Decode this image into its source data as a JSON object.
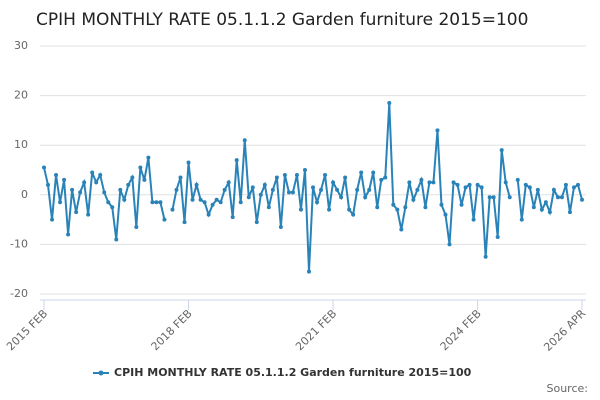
{
  "chart_data": {
    "type": "line",
    "title": "CPIH MONTHLY RATE 05.1.1.2 Garden furniture 2015=100",
    "source": "Source:",
    "categories": [
      "2015 FEB",
      null,
      null,
      null,
      null,
      null,
      null,
      null,
      null,
      null,
      null,
      null,
      null,
      null,
      null,
      null,
      null,
      null,
      null,
      null,
      null,
      null,
      null,
      null,
      null,
      null,
      null,
      null,
      null,
      null,
      null,
      null,
      null,
      null,
      null,
      null,
      "2018 FEB",
      null,
      null,
      null,
      null,
      null,
      null,
      null,
      null,
      null,
      null,
      null,
      null,
      null,
      null,
      null,
      null,
      null,
      null,
      null,
      null,
      null,
      null,
      null,
      null,
      null,
      null,
      null,
      null,
      null,
      null,
      null,
      null,
      null,
      null,
      null,
      "2021 FEB",
      null,
      null,
      null,
      null,
      null,
      null,
      null,
      null,
      null,
      null,
      null,
      null,
      null,
      null,
      null,
      null,
      null,
      null,
      null,
      null,
      null,
      null,
      null,
      null,
      null,
      null,
      null,
      null,
      null,
      null,
      null,
      null,
      null,
      null,
      null,
      "2024 FEB",
      null,
      null,
      null,
      null,
      null,
      null,
      null,
      null,
      null,
      null,
      null,
      null,
      null,
      null,
      null,
      null,
      null,
      null,
      null,
      null,
      null,
      null,
      null,
      null,
      null,
      "2026 APR"
    ],
    "series": [
      {
        "name": "CPIH MONTHLY RATE 05.1.1.2 Garden furniture 2015=100",
        "color": "#2a83b8",
        "values": [
          5.5,
          2,
          -5,
          4,
          -1.5,
          3,
          -8,
          1,
          -3.5,
          0.5,
          2.5,
          -4,
          4.5,
          2.5,
          4,
          0.5,
          -1.5,
          -2.5,
          -9,
          1,
          -1,
          2,
          3.5,
          -6.5,
          5.5,
          3,
          7.5,
          -1.5,
          -1.5,
          -1.5,
          -5,
          null,
          -3,
          1,
          3.5,
          -5.5,
          6.5,
          -1,
          2,
          -1,
          -1.5,
          -4,
          -2,
          -1,
          -1.5,
          1,
          2.5,
          -4.5,
          7,
          -1.5,
          11,
          -0.5,
          1.5,
          -5.5,
          0,
          2,
          -2.5,
          1,
          3.5,
          -6.5,
          4,
          0.5,
          0.5,
          4,
          -3,
          5,
          -15.5,
          1.5,
          -1.5,
          1,
          4,
          -3,
          2.5,
          1,
          -0.5,
          3.5,
          -3,
          -4,
          1,
          4.5,
          -0.5,
          1,
          4.5,
          -2.5,
          3,
          3.5,
          18.5,
          -2,
          -3,
          -7,
          -2.5,
          2.5,
          -1,
          1,
          3,
          -2.5,
          2.5,
          2.5,
          13,
          -2,
          -4,
          -10,
          2.5,
          2,
          -2,
          1.5,
          2,
          -5,
          2,
          1.5,
          -12.5,
          -0.5,
          -0.5,
          -8.5,
          9,
          2.5,
          -0.5,
          null,
          3,
          -5,
          2,
          1.5,
          -2.5,
          1,
          -3,
          -1.5,
          -3.5,
          1,
          -0.5,
          -0.5,
          2,
          -3.5,
          1.5,
          2,
          -1
        ]
      }
    ],
    "ylim": [
      -20,
      30
    ],
    "yticks": [
      -20,
      -10,
      0,
      10,
      20,
      30
    ],
    "grid": true,
    "legend": "bottom"
  }
}
